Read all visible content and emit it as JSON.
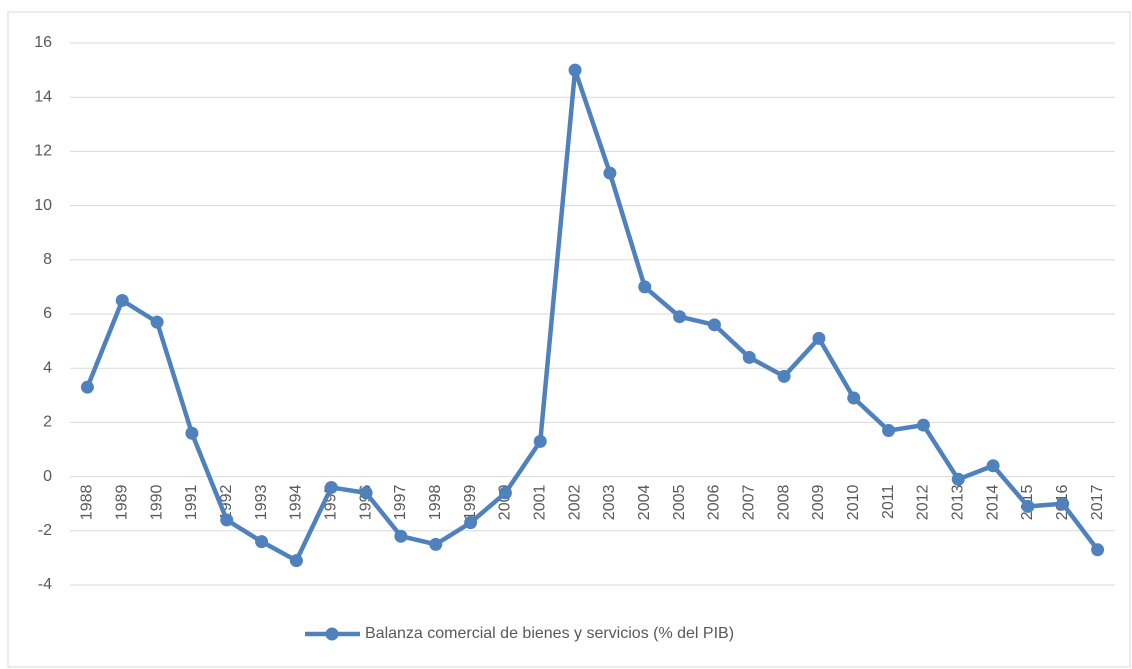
{
  "chart_data": {
    "type": "line",
    "categories": [
      "1988",
      "1989",
      "1990",
      "1991",
      "1992",
      "1993",
      "1994",
      "1995",
      "1996",
      "1997",
      "1998",
      "1999",
      "2000",
      "2001",
      "2002",
      "2003",
      "2004",
      "2005",
      "2006",
      "2007",
      "2008",
      "2009",
      "2010",
      "2011",
      "2012",
      "2013",
      "2014",
      "2015",
      "2016",
      "2017"
    ],
    "series": [
      {
        "name": "Balanza comercial de bienes y servicios (% del PIB)",
        "color": "#4f81bd",
        "values": [
          3.3,
          6.5,
          5.7,
          1.6,
          -1.6,
          -2.4,
          -3.1,
          -0.4,
          -0.6,
          -2.2,
          -2.5,
          -1.7,
          -0.6,
          1.3,
          15.0,
          11.2,
          7.0,
          5.9,
          5.6,
          4.4,
          3.7,
          5.1,
          2.9,
          1.7,
          1.9,
          -0.1,
          0.4,
          -1.1,
          -1.0,
          -2.7
        ]
      }
    ],
    "ylim": [
      -4,
      16
    ],
    "yticks": [
      -4,
      -2,
      0,
      2,
      4,
      6,
      8,
      10,
      12,
      14,
      16
    ],
    "grid": true,
    "legend": "bottom"
  }
}
